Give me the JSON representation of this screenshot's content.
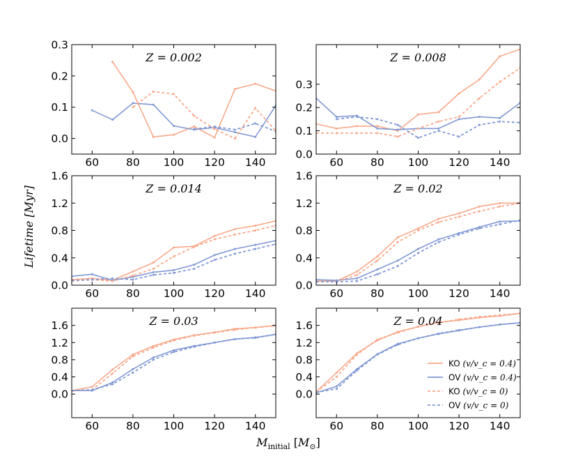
{
  "colors": {
    "KO": "#f9a88a",
    "OV": "#8098d4"
  },
  "chart_data": {
    "type": "line",
    "xlabel": "M_initial [M_⊙]",
    "xlabel_main": "M",
    "xlabel_sub": "initial",
    "xlabel_unit_open": "[",
    "xlabel_unit_main": "M",
    "xlabel_unit_sub": "⊙",
    "xlabel_unit_close": "]",
    "ylabel": "Lifetime [Myr]",
    "xlim": [
      50,
      150
    ],
    "x_ticks": [
      60,
      80,
      100,
      120,
      140
    ],
    "x_tick_labels": [
      "60",
      "80",
      "100",
      "120",
      "140"
    ],
    "legend": {
      "location": "lower-right of Z=0.04 panel",
      "entries": [
        {
          "label": "KO",
          "math": "(v/v_c = 0.4)",
          "series": "KO_rot"
        },
        {
          "label": "OV",
          "math": "(v/v_c = 0.4)",
          "series": "OV_rot"
        },
        {
          "label": "KO",
          "math": "(v/v_c = 0)",
          "series": "KO_norot"
        },
        {
          "label": "OV",
          "math": "(v/v_c = 0)",
          "series": "OV_norot"
        }
      ]
    },
    "panels": [
      {
        "title": "Z = 0.002",
        "ylim": [
          -0.05,
          0.3
        ],
        "y_ticks": [
          0.0,
          0.1,
          0.2,
          0.3
        ],
        "y_tick_labels": [
          "0.0",
          "0.1",
          "0.2",
          "0.3"
        ],
        "series": [
          {
            "name": "KO_rot",
            "x": [
              70,
              80,
              90,
              100,
              110,
              120,
              130,
              140,
              150
            ],
            "y": [
              0.245,
              0.148,
              0.005,
              0.012,
              0.038,
              0.003,
              0.158,
              0.175,
              0.152
            ]
          },
          {
            "name": "OV_rot",
            "x": [
              60,
              70,
              80,
              90,
              100,
              110,
              120,
              130,
              140,
              150
            ],
            "y": [
              0.09,
              0.06,
              0.113,
              0.108,
              0.04,
              0.028,
              0.035,
              0.02,
              0.005,
              0.105
            ]
          },
          {
            "name": "KO_norot",
            "x": [
              80,
              90,
              100,
              110,
              120,
              130
            ],
            "y": [
              0.1,
              0.15,
              0.142,
              0.072,
              0.03,
              0.0
            ]
          },
          {
            "name": "OV_norot",
            "x": [
              110,
              120,
              130,
              140,
              150
            ],
            "y": [
              0.03,
              0.038,
              0.028,
              0.048,
              0.023
            ]
          },
          {
            "name": "KO_norot_b",
            "x": [
              130,
              140,
              150
            ],
            "y": [
              0.0,
              0.097,
              0.025
            ]
          }
        ]
      },
      {
        "title": "Z = 0.008",
        "ylim": [
          0.0,
          0.47
        ],
        "y_ticks": [
          0.0,
          0.1,
          0.2,
          0.3
        ],
        "y_tick_labels": [
          "0.0",
          "0.1",
          "0.2",
          "0.3"
        ],
        "series": [
          {
            "name": "KO_rot",
            "x": [
              50,
              60,
              70,
              80,
              90,
              100,
              110,
              120,
              130,
              140,
              150
            ],
            "y": [
              0.13,
              0.11,
              0.12,
              0.12,
              0.1,
              0.17,
              0.18,
              0.26,
              0.32,
              0.42,
              0.45
            ]
          },
          {
            "name": "OV_rot",
            "x": [
              50,
              60,
              70,
              80,
              90,
              100,
              110,
              120,
              130,
              140,
              150
            ],
            "y": [
              0.24,
              0.16,
              0.165,
              0.11,
              0.105,
              0.11,
              0.11,
              0.15,
              0.16,
              0.155,
              0.22
            ]
          },
          {
            "name": "KO_norot",
            "x": [
              50,
              60,
              70,
              80,
              90,
              100,
              110,
              120,
              130,
              140,
              150
            ],
            "y": [
              0.09,
              0.09,
              0.09,
              0.09,
              0.075,
              0.11,
              0.14,
              0.16,
              0.24,
              0.31,
              0.37
            ]
          },
          {
            "name": "OV_norot",
            "x": [
              60,
              70,
              80,
              90,
              100,
              110,
              120,
              130,
              140,
              150
            ],
            "y": [
              0.15,
              0.16,
              0.15,
              0.125,
              0.07,
              0.1,
              0.075,
              0.125,
              0.14,
              0.135
            ]
          }
        ]
      },
      {
        "title": "Z = 0.014",
        "ylim": [
          0.0,
          1.6
        ],
        "y_ticks": [
          0.0,
          0.4,
          0.8,
          1.2,
          1.6
        ],
        "y_tick_labels": [
          "0.0",
          "0.4",
          "0.8",
          "1.2",
          "1.6"
        ],
        "series": [
          {
            "name": "KO_rot",
            "x": [
              50,
              60,
              70,
              80,
              90,
              100,
              110,
              120,
              130,
              140,
              150
            ],
            "y": [
              0.08,
              0.1,
              0.07,
              0.2,
              0.33,
              0.55,
              0.57,
              0.72,
              0.82,
              0.87,
              0.94
            ]
          },
          {
            "name": "OV_rot",
            "x": [
              50,
              60,
              70,
              80,
              90,
              100,
              110,
              120,
              130,
              140,
              150
            ],
            "y": [
              0.13,
              0.16,
              0.07,
              0.12,
              0.19,
              0.22,
              0.3,
              0.44,
              0.53,
              0.59,
              0.65
            ]
          },
          {
            "name": "KO_norot",
            "x": [
              50,
              60,
              70,
              80,
              90,
              100,
              110,
              120,
              130,
              140,
              150
            ],
            "y": [
              0.06,
              0.08,
              0.06,
              0.14,
              0.24,
              0.42,
              0.56,
              0.67,
              0.74,
              0.8,
              0.87
            ]
          },
          {
            "name": "OV_norot",
            "x": [
              50,
              60,
              70,
              80,
              90,
              100,
              110,
              120,
              130,
              140,
              150
            ],
            "y": [
              0.07,
              0.08,
              0.1,
              0.08,
              0.15,
              0.18,
              0.24,
              0.37,
              0.46,
              0.53,
              0.6
            ]
          }
        ]
      },
      {
        "title": "Z = 0.02",
        "ylim": [
          0.0,
          1.6
        ],
        "y_ticks": [
          0.0,
          0.4,
          0.8,
          1.2,
          1.6
        ],
        "y_tick_labels": [
          "0.0",
          "0.4",
          "0.8",
          "1.2",
          "1.6"
        ],
        "series": [
          {
            "name": "KO_rot",
            "x": [
              50,
              60,
              70,
              80,
              90,
              100,
              110,
              120,
              130,
              140,
              150
            ],
            "y": [
              0.06,
              0.06,
              0.2,
              0.42,
              0.7,
              0.83,
              0.97,
              1.05,
              1.15,
              1.2,
              1.2
            ]
          },
          {
            "name": "OV_rot",
            "x": [
              50,
              60,
              70,
              80,
              90,
              100,
              110,
              120,
              130,
              140,
              150
            ],
            "y": [
              0.08,
              0.07,
              0.1,
              0.23,
              0.36,
              0.53,
              0.67,
              0.76,
              0.85,
              0.93,
              0.94
            ]
          },
          {
            "name": "KO_norot",
            "x": [
              50,
              60,
              70,
              80,
              90,
              100,
              110,
              120,
              130,
              140,
              150
            ],
            "y": [
              0.05,
              0.05,
              0.15,
              0.36,
              0.63,
              0.8,
              0.92,
              1.0,
              1.08,
              1.15,
              1.2
            ]
          },
          {
            "name": "OV_norot",
            "x": [
              50,
              60,
              70,
              80,
              90,
              100,
              110,
              120,
              130,
              140,
              150
            ],
            "y": [
              0.05,
              0.05,
              0.06,
              0.16,
              0.28,
              0.47,
              0.63,
              0.74,
              0.83,
              0.89,
              0.95
            ]
          }
        ]
      },
      {
        "title": "Z = 0.03",
        "ylim": [
          -0.55,
          2.0
        ],
        "y_ticks": [
          0.0,
          0.4,
          0.8,
          1.2,
          1.6
        ],
        "y_tick_labels": [
          "0.0",
          "0.4",
          "0.8",
          "1.2",
          "1.6"
        ],
        "series": [
          {
            "name": "KO_rot",
            "x": [
              50,
              60,
              70,
              80,
              90,
              100,
              110,
              120,
              130,
              140,
              150
            ],
            "y": [
              0.08,
              0.17,
              0.57,
              0.92,
              1.12,
              1.27,
              1.37,
              1.44,
              1.52,
              1.55,
              1.6
            ]
          },
          {
            "name": "OV_rot",
            "x": [
              50,
              60,
              70,
              80,
              90,
              100,
              110,
              120,
              130,
              140,
              150
            ],
            "y": [
              0.08,
              0.08,
              0.27,
              0.58,
              0.85,
              1.02,
              1.12,
              1.2,
              1.28,
              1.32,
              1.39
            ]
          },
          {
            "name": "KO_norot",
            "x": [
              50,
              60,
              70,
              80,
              90,
              100,
              110,
              120,
              130,
              140,
              150
            ],
            "y": [
              0.07,
              0.1,
              0.48,
              0.88,
              1.08,
              1.25,
              1.36,
              1.43,
              1.5,
              1.55,
              1.59
            ]
          },
          {
            "name": "OV_norot",
            "x": [
              50,
              60,
              70,
              80,
              90,
              100,
              110,
              120,
              130,
              140,
              150
            ],
            "y": [
              0.08,
              0.1,
              0.23,
              0.5,
              0.8,
              0.98,
              1.1,
              1.2,
              1.28,
              1.31,
              1.39
            ]
          }
        ]
      },
      {
        "title": "Z = 0.04",
        "ylim": [
          -0.55,
          2.0
        ],
        "y_ticks": [
          0.0,
          0.4,
          0.8,
          1.2,
          1.6
        ],
        "y_tick_labels": [
          "0.0",
          "0.4",
          "0.8",
          "1.2",
          "1.6"
        ],
        "series": [
          {
            "name": "KO_rot",
            "x": [
              50,
              60,
              70,
              80,
              90,
              100,
              110,
              120,
              130,
              140,
              150
            ],
            "y": [
              0.05,
              0.5,
              0.95,
              1.25,
              1.45,
              1.57,
              1.67,
              1.72,
              1.78,
              1.82,
              1.88
            ]
          },
          {
            "name": "OV_rot",
            "x": [
              50,
              60,
              70,
              80,
              90,
              100,
              110,
              120,
              130,
              140,
              150
            ],
            "y": [
              0.03,
              0.18,
              0.58,
              0.93,
              1.17,
              1.3,
              1.4,
              1.48,
              1.56,
              1.62,
              1.66
            ]
          },
          {
            "name": "KO_norot",
            "x": [
              50,
              60,
              70,
              80,
              90,
              100,
              110,
              120,
              130,
              140,
              150
            ],
            "y": [
              0.05,
              0.4,
              0.92,
              1.27,
              1.43,
              1.57,
              1.66,
              1.74,
              1.8,
              1.84,
              1.88
            ]
          },
          {
            "name": "OV_norot",
            "x": [
              50,
              60,
              70,
              80,
              90,
              100,
              110,
              120,
              130,
              140,
              150
            ],
            "y": [
              0.04,
              0.12,
              0.55,
              0.92,
              1.15,
              1.3,
              1.41,
              1.49,
              1.56,
              1.62,
              1.66
            ]
          }
        ]
      }
    ]
  }
}
